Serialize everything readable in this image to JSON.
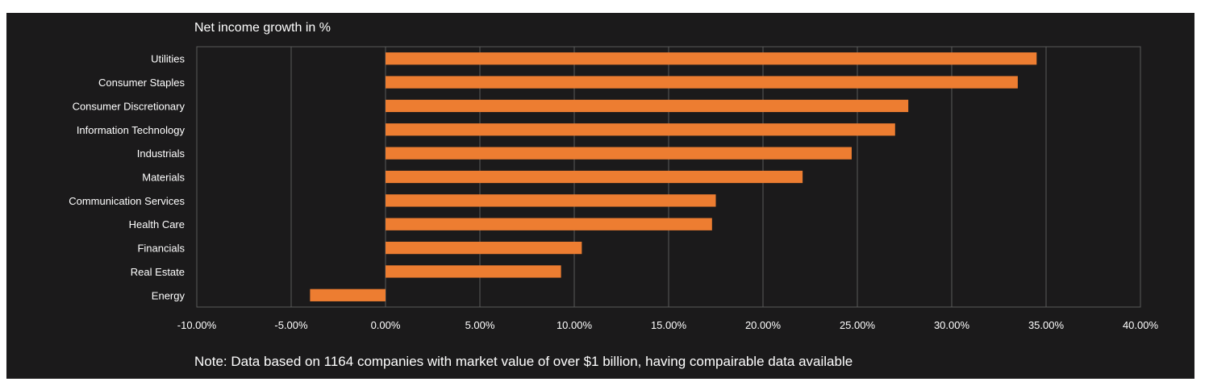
{
  "chart_data": {
    "type": "bar",
    "orientation": "horizontal",
    "title": "Net income growth in %",
    "note": "Note: Data based on 1164 companies with market value of over $1 billion, having compairable data available",
    "categories": [
      "Utilities",
      "Consumer Staples",
      "Consumer Discretionary",
      "Information Technology",
      "Industrials",
      "Materials",
      "Communication Services",
      "Health Care",
      "Financials",
      "Real Estate",
      "Energy"
    ],
    "values": [
      34.5,
      33.5,
      27.7,
      27.0,
      24.7,
      22.1,
      17.5,
      17.3,
      10.4,
      9.3,
      -4.0
    ],
    "xlim": [
      -10,
      40
    ],
    "xticks": [
      -10,
      -5,
      0,
      5,
      10,
      15,
      20,
      25,
      30,
      35,
      40
    ],
    "xtick_labels": [
      "-10.00%",
      "-5.00%",
      "0.00%",
      "5.00%",
      "10.00%",
      "15.00%",
      "20.00%",
      "25.00%",
      "30.00%",
      "35.00%",
      "40.00%"
    ],
    "grid": true,
    "colors": {
      "bar": "#ed7d31",
      "background": "#1b1a1b",
      "grid": "#5a5a5a",
      "text": "#ffffff"
    }
  }
}
